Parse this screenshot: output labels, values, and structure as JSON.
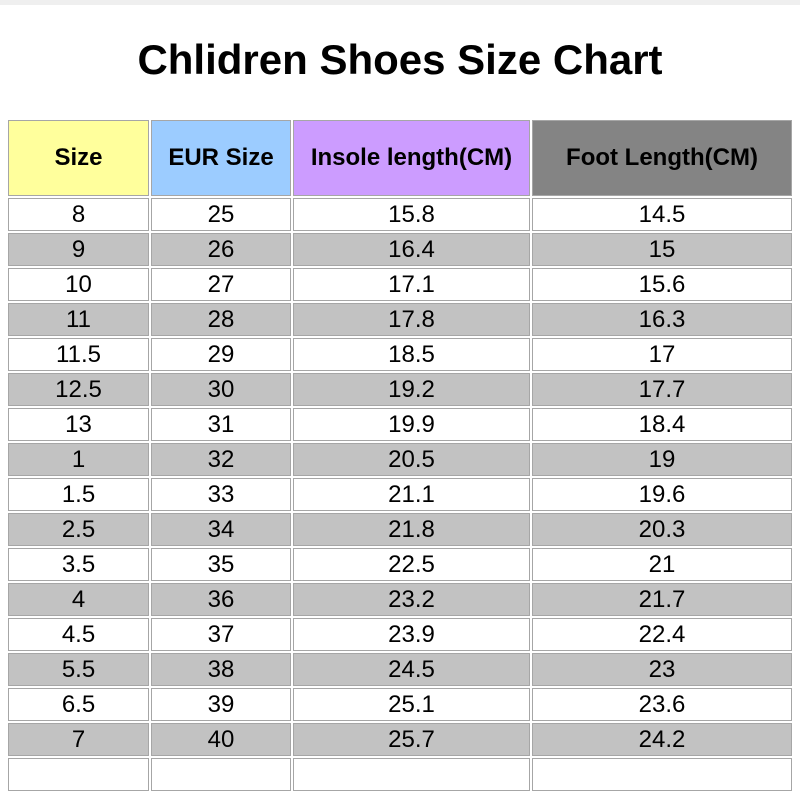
{
  "page": {
    "top_bar_color": "#efefef",
    "title": "Chlidren Shoes Size Chart"
  },
  "chart_data": {
    "type": "table",
    "title": "Chlidren Shoes Size Chart",
    "grid": true,
    "columns": [
      {
        "label": "Size",
        "header_color": "#ffff9c"
      },
      {
        "label": "EUR Size",
        "header_color": "#9cccff"
      },
      {
        "label": "Insole length(CM)",
        "header_color": "#cc9cff"
      },
      {
        "label": "Foot Length(CM)",
        "header_color": "#848484"
      }
    ],
    "row_stripe_colors": {
      "odd_rows": "#ffffff",
      "even_rows": "#c2c2c2"
    },
    "rows": [
      [
        "8",
        "25",
        "15.8",
        "14.5"
      ],
      [
        "9",
        "26",
        "16.4",
        "15"
      ],
      [
        "10",
        "27",
        "17.1",
        "15.6"
      ],
      [
        "11",
        "28",
        "17.8",
        "16.3"
      ],
      [
        "11.5",
        "29",
        "18.5",
        "17"
      ],
      [
        "12.5",
        "30",
        "19.2",
        "17.7"
      ],
      [
        "13",
        "31",
        "19.9",
        "18.4"
      ],
      [
        "1",
        "32",
        "20.5",
        "19"
      ],
      [
        "1.5",
        "33",
        "21.1",
        "19.6"
      ],
      [
        "2.5",
        "34",
        "21.8",
        "20.3"
      ],
      [
        "3.5",
        "35",
        "22.5",
        "21"
      ],
      [
        "4",
        "36",
        "23.2",
        "21.7"
      ],
      [
        "4.5",
        "37",
        "23.9",
        "22.4"
      ],
      [
        "5.5",
        "38",
        "24.5",
        "23"
      ],
      [
        "6.5",
        "39",
        "25.1",
        "23.6"
      ],
      [
        "7",
        "40",
        "25.7",
        "24.2"
      ],
      [
        "",
        "",
        "",
        ""
      ]
    ]
  }
}
